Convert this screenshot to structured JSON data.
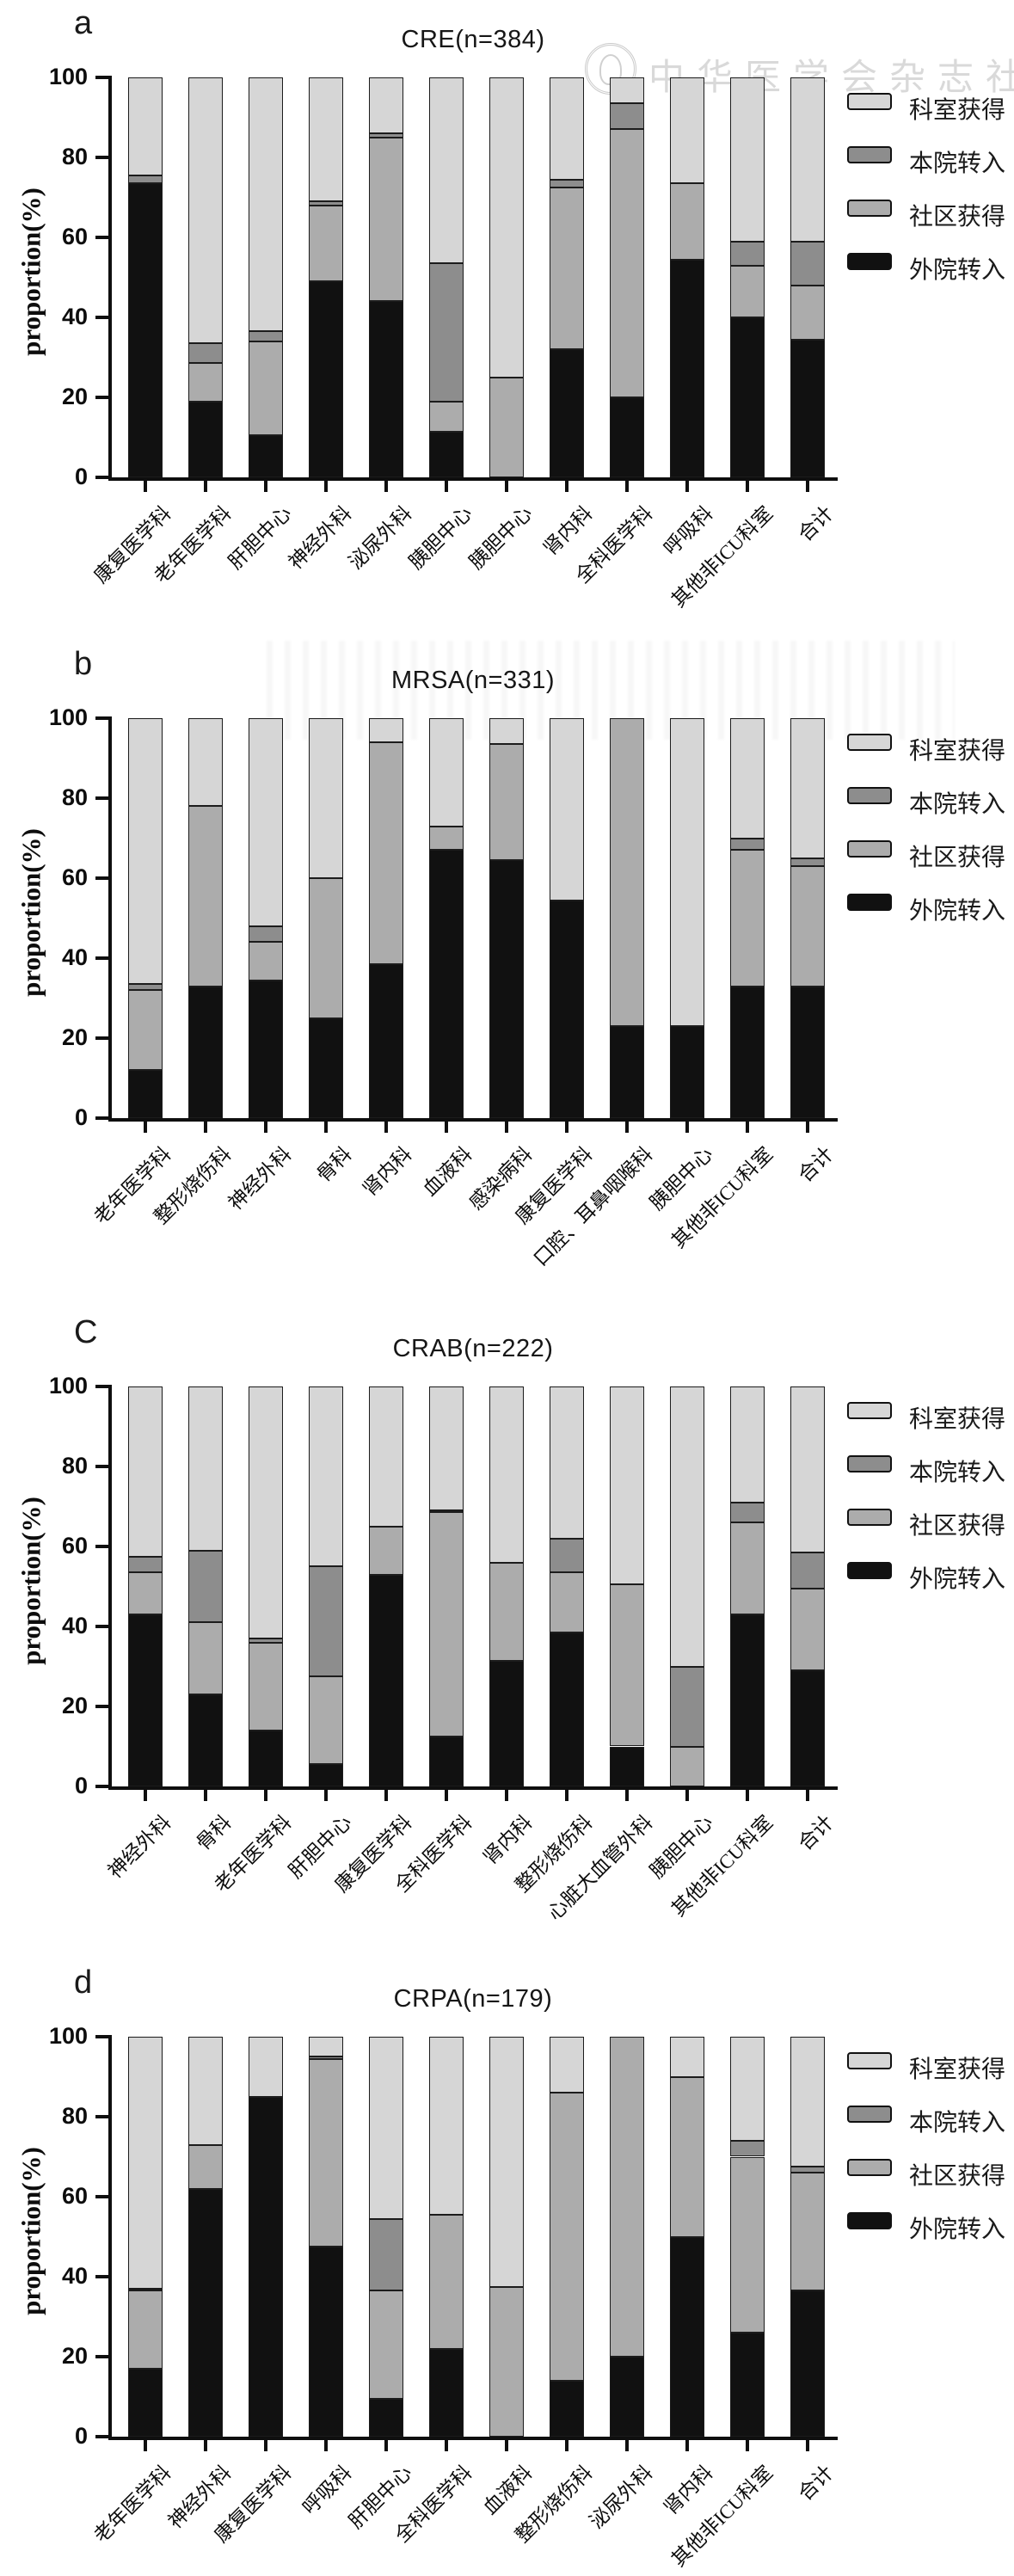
{
  "figure": {
    "background": "#ffffff",
    "watermark": {
      "text": "中华医学会杂志社"
    }
  },
  "legend": {
    "items": [
      {
        "label": "科室获得",
        "color": "#d6d6d6"
      },
      {
        "label": "本院转入",
        "color": "#8d8d8d"
      },
      {
        "label": "社区获得",
        "color": "#acacac"
      },
      {
        "label": "外院转入",
        "color": "#111111"
      }
    ]
  },
  "axes": {
    "yticks": [
      0,
      20,
      40,
      60,
      80,
      100
    ],
    "ylim": [
      0,
      100
    ],
    "grid": false,
    "legend_position": "right"
  },
  "chart_data": [
    {
      "id": "a",
      "panel_letter": "a",
      "type": "bar",
      "stacked": true,
      "title": "CRE(n=384)",
      "ylabel": "proportion(%)",
      "xlabel": "",
      "ylim": [
        0,
        100
      ],
      "categories": [
        "康复医学科",
        "老年医学科",
        "肝胆中心",
        "神经外科",
        "泌尿外科",
        "胰胆中心",
        "胰胆中心",
        "肾内科",
        "全科医学科",
        "呼吸科",
        "其他非ICU科室",
        "合计"
      ],
      "series": [
        {
          "name": "外院转入",
          "color": "#111111",
          "values": [
            73.5,
            19,
            10.5,
            49,
            44,
            11.5,
            0,
            32,
            20,
            54.5,
            40,
            34.5
          ]
        },
        {
          "name": "社区获得",
          "color": "#acacac",
          "values": [
            0,
            9.5,
            23.5,
            19,
            41,
            7.5,
            25,
            40.5,
            67,
            19,
            13,
            13.5
          ]
        },
        {
          "name": "本院转入",
          "color": "#8d8d8d",
          "values": [
            2,
            5,
            2.5,
            1,
            1,
            34.5,
            0,
            2,
            6.5,
            0,
            6,
            11
          ]
        },
        {
          "name": "科室获得",
          "color": "#d6d6d6",
          "values": [
            24.5,
            66.5,
            63.5,
            31,
            14,
            46.5,
            75,
            25.5,
            6.5,
            26.5,
            41,
            41
          ]
        }
      ]
    },
    {
      "id": "b",
      "panel_letter": "b",
      "type": "bar",
      "stacked": true,
      "title": "MRSA(n=331)",
      "ylabel": "proportion(%)",
      "xlabel": "",
      "ylim": [
        0,
        100
      ],
      "categories": [
        "老年医学科",
        "整形烧伤科",
        "神经外科",
        "骨科",
        "肾内科",
        "血液科",
        "感染病科",
        "康复医学科",
        "口腔、耳鼻咽喉科",
        "胰胆中心",
        "其他非ICU科室",
        "合计"
      ],
      "series": [
        {
          "name": "外院转入",
          "color": "#111111",
          "values": [
            12,
            33,
            34.5,
            25,
            38.5,
            67,
            64.5,
            54.5,
            23,
            23,
            33,
            33
          ]
        },
        {
          "name": "社区获得",
          "color": "#acacac",
          "values": [
            20,
            45,
            9.5,
            35,
            55.5,
            6,
            29,
            0,
            77,
            0,
            34,
            30
          ]
        },
        {
          "name": "本院转入",
          "color": "#8d8d8d",
          "values": [
            1.5,
            0,
            4,
            0,
            0,
            0,
            0,
            0,
            0,
            0,
            3,
            2
          ]
        },
        {
          "name": "科室获得",
          "color": "#d6d6d6",
          "values": [
            66.5,
            22,
            52,
            40,
            6,
            27,
            6.5,
            45.5,
            0,
            77,
            30,
            35
          ]
        }
      ]
    },
    {
      "id": "c",
      "panel_letter": "C",
      "type": "bar",
      "stacked": true,
      "title": "CRAB(n=222)",
      "ylabel": "proportion(%)",
      "xlabel": "",
      "ylim": [
        0,
        100
      ],
      "categories": [
        "神经外科",
        "骨科",
        "老年医学科",
        "肝胆中心",
        "康复医学科",
        "全科医学科",
        "肾内科",
        "整形烧伤科",
        "心脏大血管外科",
        "胰胆中心",
        "其他非ICU科室",
        "合计"
      ],
      "series": [
        {
          "name": "外院转入",
          "color": "#111111",
          "values": [
            43,
            23,
            14,
            5.5,
            53,
            12.5,
            31.5,
            38.5,
            10,
            0,
            43,
            29
          ]
        },
        {
          "name": "社区获得",
          "color": "#acacac",
          "values": [
            10.5,
            18,
            22,
            22,
            12,
            56,
            24.5,
            15,
            40.5,
            10,
            23,
            20.5
          ]
        },
        {
          "name": "本院转入",
          "color": "#8d8d8d",
          "values": [
            4,
            18,
            1,
            27.5,
            0,
            0.5,
            0,
            8.5,
            0,
            20,
            5,
            9
          ]
        },
        {
          "name": "科室获得",
          "color": "#d6d6d6",
          "values": [
            42.5,
            41,
            63,
            45,
            35,
            31,
            44,
            38,
            49.5,
            70,
            29,
            41.5
          ]
        }
      ]
    },
    {
      "id": "d",
      "panel_letter": "d",
      "type": "bar",
      "stacked": true,
      "title": "CRPA(n=179)",
      "ylabel": "proportion(%)",
      "xlabel": "",
      "ylim": [
        0,
        100
      ],
      "categories": [
        "老年医学科",
        "神经外科",
        "康复医学科",
        "呼吸科",
        "肝胆中心",
        "全科医学科",
        "血液科",
        "整形烧伤科",
        "泌尿外科",
        "肾内科",
        "其他非ICU科室",
        "合计"
      ],
      "series": [
        {
          "name": "外院转入",
          "color": "#111111",
          "values": [
            17,
            62,
            85,
            47.5,
            9.5,
            22,
            0,
            14,
            20,
            50,
            26,
            36.5
          ]
        },
        {
          "name": "社区获得",
          "color": "#acacac",
          "values": [
            19.5,
            11,
            0,
            47,
            27,
            33.5,
            37.5,
            72,
            80,
            40,
            44,
            29.5
          ]
        },
        {
          "name": "本院转入",
          "color": "#8d8d8d",
          "values": [
            0.5,
            0,
            0,
            0.5,
            18,
            0,
            0,
            0,
            0,
            0,
            4,
            1.5
          ]
        },
        {
          "name": "科室获得",
          "color": "#d6d6d6",
          "values": [
            63,
            27,
            15,
            5,
            45.5,
            44.5,
            62.5,
            14,
            0,
            10,
            26,
            32.5
          ]
        }
      ]
    }
  ]
}
